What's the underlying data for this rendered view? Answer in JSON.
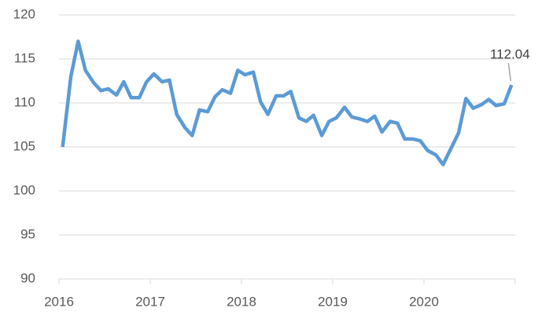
{
  "chart_data": {
    "type": "line",
    "x": [
      2016.04,
      2016.13,
      2016.21,
      2016.29,
      2016.38,
      2016.46,
      2016.54,
      2016.63,
      2016.71,
      2016.79,
      2016.88,
      2016.96,
      2017.04,
      2017.13,
      2017.21,
      2017.29,
      2017.38,
      2017.46,
      2017.54,
      2017.63,
      2017.71,
      2017.79,
      2017.88,
      2017.96,
      2018.04,
      2018.13,
      2018.21,
      2018.29,
      2018.38,
      2018.46,
      2018.54,
      2018.63,
      2018.71,
      2018.79,
      2018.88,
      2018.96,
      2019.04,
      2019.13,
      2019.21,
      2019.29,
      2019.38,
      2019.46,
      2019.54,
      2019.63,
      2019.71,
      2019.79,
      2019.88,
      2019.96,
      2020.04,
      2020.13,
      2020.21,
      2020.29,
      2020.38,
      2020.46,
      2020.54,
      2020.63,
      2020.71,
      2020.79,
      2020.88,
      2020.96
    ],
    "series": [
      {
        "color": "#5b9bd5",
        "values": [
          105,
          113,
          117,
          113.7,
          112.3,
          111.4,
          111.6,
          110.9,
          112.4,
          110.6,
          110.6,
          112.4,
          113.3,
          112.4,
          112.6,
          108.7,
          107.2,
          106.3,
          109.2,
          109.0,
          110.7,
          111.5,
          111.1,
          113.7,
          113.2,
          113.5,
          110.1,
          108.7,
          110.8,
          110.8,
          111.3,
          108.3,
          107.9,
          108.6,
          106.3,
          107.9,
          108.3,
          109.5,
          108.4,
          108.2,
          107.9,
          108.5,
          106.7,
          107.9,
          107.7,
          105.9,
          105.9,
          105.7,
          104.6,
          104.1,
          103.0,
          104.7,
          106.6,
          110.5,
          109.4,
          109.8,
          110.4,
          109.7,
          109.9,
          112.04
        ]
      }
    ],
    "annotation": "112.04",
    "xlim": [
      2016,
      2021
    ],
    "xticks": [
      2016,
      2017,
      2018,
      2019,
      2020
    ],
    "ylim": [
      90,
      120
    ],
    "yticks": [
      90,
      95,
      100,
      105,
      110,
      115,
      120
    ],
    "grid": true
  }
}
